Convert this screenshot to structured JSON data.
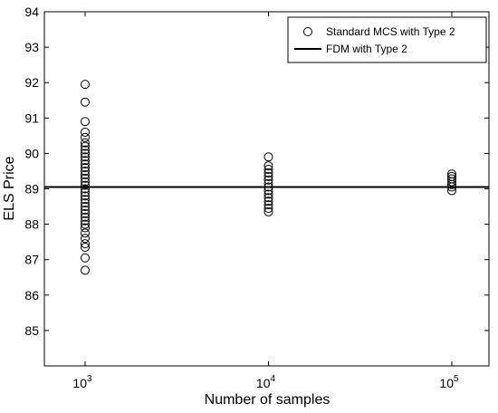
{
  "chart_data": {
    "type": "scatter",
    "xscale": "log",
    "xlabel": "Number of samples",
    "ylabel": "ELS Price",
    "ylim": [
      84,
      94
    ],
    "y_ticks": [
      85,
      86,
      87,
      88,
      89,
      90,
      91,
      92,
      93,
      94
    ],
    "x_ticks": [
      {
        "value": 1000,
        "base": "10",
        "exp": "3"
      },
      {
        "value": 10000,
        "base": "10",
        "exp": "4"
      },
      {
        "value": 100000,
        "base": "10",
        "exp": "5"
      }
    ],
    "grid": false,
    "legend_position": "top-right",
    "series": [
      {
        "name": "Standard MCS with Type 2",
        "kind": "scatter",
        "marker": "open-circle",
        "color": "#000000",
        "points": [
          {
            "x": 1000,
            "y": [
              86.7,
              87.05,
              87.35,
              87.45,
              87.6,
              87.75,
              87.9,
              88.0,
              88.1,
              88.2,
              88.3,
              88.4,
              88.5,
              88.6,
              88.7,
              88.8,
              88.9,
              89.0,
              89.1,
              89.2,
              89.3,
              89.4,
              89.5,
              89.6,
              89.7,
              89.8,
              89.9,
              90.0,
              90.1,
              90.2,
              90.3,
              90.45,
              90.6,
              90.9,
              91.45,
              91.95
            ]
          },
          {
            "x": 10000,
            "y": [
              88.35,
              88.45,
              88.55,
              88.65,
              88.75,
              88.85,
              88.95,
              89.05,
              89.15,
              89.25,
              89.35,
              89.45,
              89.55,
              89.65,
              89.9
            ]
          },
          {
            "x": 100000,
            "y": [
              88.95,
              89.05,
              89.12,
              89.2,
              89.28,
              89.35,
              89.42
            ]
          }
        ]
      },
      {
        "name": "FDM with Type 2",
        "kind": "line",
        "color": "#000000",
        "y": 89.05
      }
    ]
  }
}
